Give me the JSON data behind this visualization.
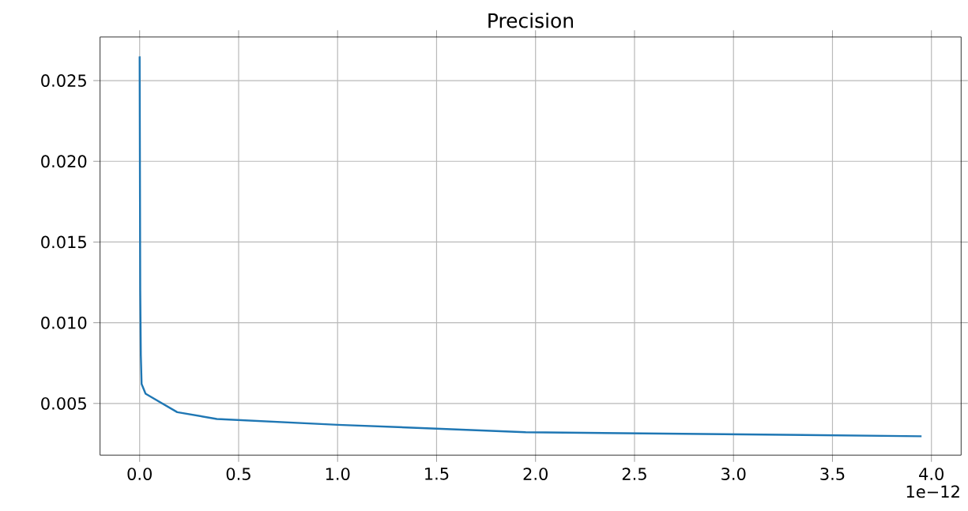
{
  "chart_data": {
    "type": "line",
    "title": "Precision",
    "x": [
      0,
      0.003,
      0.006,
      0.01,
      0.03,
      0.19,
      0.39,
      1.0,
      1.5,
      1.95,
      3.95
    ],
    "values": [
      0.0265,
      0.012,
      0.008,
      0.0062,
      0.0056,
      0.00446,
      0.00404,
      0.00368,
      0.00344,
      0.00322,
      0.00297
    ],
    "color": "#1f77b4",
    "xlim": [
      -0.2,
      4.15
    ],
    "ylim": [
      0.0018,
      0.0277
    ],
    "xticks": [
      {
        "value": 0,
        "label": "0.0"
      },
      {
        "value": 0.5,
        "label": "0.5"
      },
      {
        "value": 1,
        "label": "1.0"
      },
      {
        "value": 1.5,
        "label": "1.5"
      },
      {
        "value": 2,
        "label": "2.0"
      },
      {
        "value": 2.5,
        "label": "2.5"
      },
      {
        "value": 3,
        "label": "3.0"
      },
      {
        "value": 3.5,
        "label": "3.5"
      },
      {
        "value": 4,
        "label": "4.0"
      }
    ],
    "yticks": [
      {
        "value": 0.005,
        "label": "0.005"
      },
      {
        "value": 0.01,
        "label": "0.010"
      },
      {
        "value": 0.015,
        "label": "0.015"
      },
      {
        "value": 0.02,
        "label": "0.020"
      },
      {
        "value": 0.025,
        "label": "0.025"
      }
    ],
    "grid": true,
    "annotations": [
      "1e−12"
    ]
  }
}
